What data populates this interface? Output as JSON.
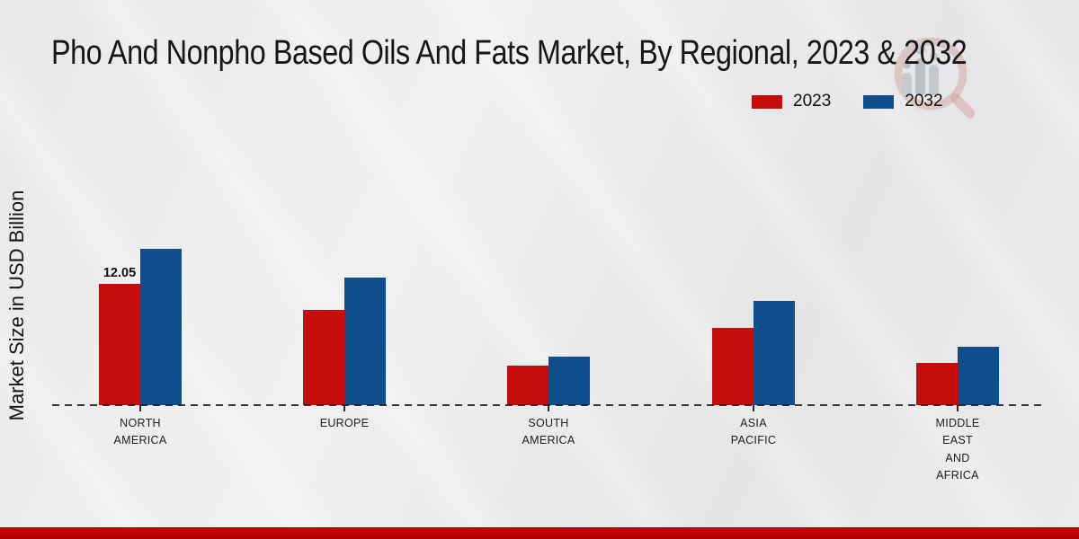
{
  "title": "Pho And Nonpho Based Oils And Fats Market, By Regional, 2023 & 2032",
  "y_axis_label": "Market Size in USD Billion",
  "legend": {
    "items": [
      {
        "label": "2023",
        "color": "#c70c0c"
      },
      {
        "label": "2032",
        "color": "#0f4e8a"
      }
    ]
  },
  "chart_data": {
    "type": "bar",
    "title": "Pho And Nonpho Based Oils And Fats Market, By Regional, 2023 & 2032",
    "xlabel": "",
    "ylabel": "Market Size in USD Billion",
    "ylim": [
      0,
      18
    ],
    "grid": false,
    "legend_position": "top-right",
    "baseline_style": "dashed",
    "categories": [
      "NORTH AMERICA",
      "EUROPE",
      "SOUTH AMERICA",
      "ASIA PACIFIC",
      "MIDDLE EAST AND AFRICA"
    ],
    "category_display_lines": [
      [
        "NORTH",
        "AMERICA"
      ],
      [
        "EUROPE"
      ],
      [
        "SOUTH",
        "AMERICA"
      ],
      [
        "ASIA",
        "PACIFIC"
      ],
      [
        "MIDDLE",
        "EAST",
        "AND",
        "AFRICA"
      ]
    ],
    "series": [
      {
        "name": "2023",
        "color": "#c70c0c",
        "values": [
          12.05,
          9.5,
          3.9,
          7.7,
          4.2
        ]
      },
      {
        "name": "2032",
        "color": "#0f4e8a",
        "values": [
          15.5,
          12.7,
          4.8,
          10.4,
          5.8
        ]
      }
    ],
    "data_labels": [
      {
        "series": "2023",
        "category": "NORTH AMERICA",
        "text": "12.05"
      }
    ]
  },
  "colors": {
    "background": "#e9e9e9",
    "bottom_strip": "#bd0101",
    "axis_line": "#1c1c1c",
    "title_text": "#161616"
  },
  "watermark": {
    "icon": "magnifier-bar-chart-logo"
  }
}
